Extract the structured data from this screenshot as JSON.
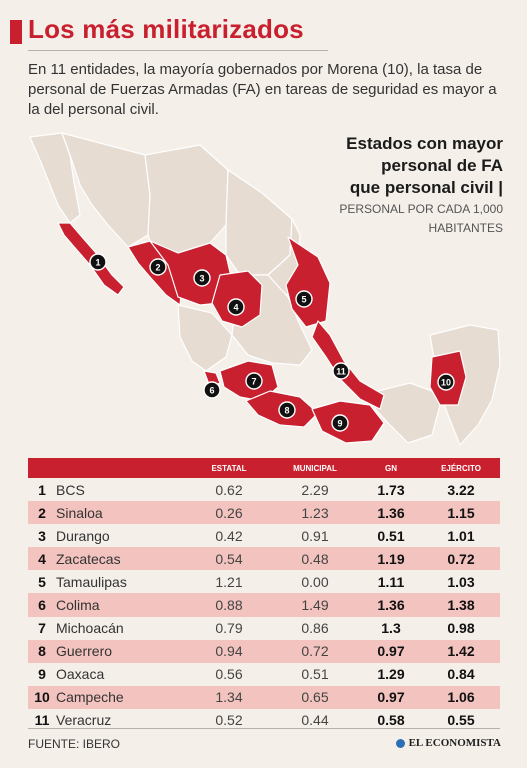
{
  "title": "Los más militarizados",
  "intro": "En 11 entidades, la mayoría gobernados por Morena (10), la tasa de personal de Fuerzas Armadas (FA) en tareas de seguridad es mayor a la del personal civil.",
  "legend": {
    "title_line1": "Estados con mayor",
    "title_line2": "personal de FA",
    "title_line3": "que personal civil |",
    "subtitle_line1": "PERSONAL POR CADA 1,000",
    "subtitle_line2": "HABITANTES"
  },
  "colors": {
    "accent": "#c8202f",
    "highlight_row": "#f3c4bf",
    "base_land": "#e6dcd2"
  },
  "chart_data": {
    "type": "table",
    "columns": [
      "ESTATAL",
      "MUNICIPAL",
      "GN",
      "EJÉRCITO"
    ],
    "rows": [
      {
        "rank": "1",
        "state": "BCS",
        "estatal": "0.62",
        "municipal": "2.29",
        "gn": "1.73",
        "ejercito": "3.22"
      },
      {
        "rank": "2",
        "state": "Sinaloa",
        "estatal": "0.26",
        "municipal": "1.23",
        "gn": "1.36",
        "ejercito": "1.15"
      },
      {
        "rank": "3",
        "state": "Durango",
        "estatal": "0.42",
        "municipal": "0.91",
        "gn": "0.51",
        "ejercito": "1.01"
      },
      {
        "rank": "4",
        "state": "Zacatecas",
        "estatal": "0.54",
        "municipal": "0.48",
        "gn": "1.19",
        "ejercito": "0.72"
      },
      {
        "rank": "5",
        "state": "Tamaulipas",
        "estatal": "1.21",
        "municipal": "0.00",
        "gn": "1.11",
        "ejercito": "1.03"
      },
      {
        "rank": "6",
        "state": "Colima",
        "estatal": "0.88",
        "municipal": "1.49",
        "gn": "1.36",
        "ejercito": "1.38"
      },
      {
        "rank": "7",
        "state": "Michoacán",
        "estatal": "0.79",
        "municipal": "0.86",
        "gn": "1.3",
        "ejercito": "0.98"
      },
      {
        "rank": "8",
        "state": "Guerrero",
        "estatal": "0.94",
        "municipal": "0.72",
        "gn": "0.97",
        "ejercito": "1.42"
      },
      {
        "rank": "9",
        "state": "Oaxaca",
        "estatal": "0.56",
        "municipal": "0.51",
        "gn": "1.29",
        "ejercito": "0.84"
      },
      {
        "rank": "10",
        "state": "Campeche",
        "estatal": "1.34",
        "municipal": "0.65",
        "gn": "0.97",
        "ejercito": "1.06"
      },
      {
        "rank": "11",
        "state": "Veracruz",
        "estatal": "0.52",
        "municipal": "0.44",
        "gn": "0.58",
        "ejercito": "0.55"
      }
    ]
  },
  "map_markers": [
    "1",
    "2",
    "3",
    "4",
    "5",
    "6",
    "7",
    "8",
    "9",
    "10",
    "11"
  ],
  "source": "FUENTE: IBERO",
  "brand": "EL ECONOMISTA"
}
